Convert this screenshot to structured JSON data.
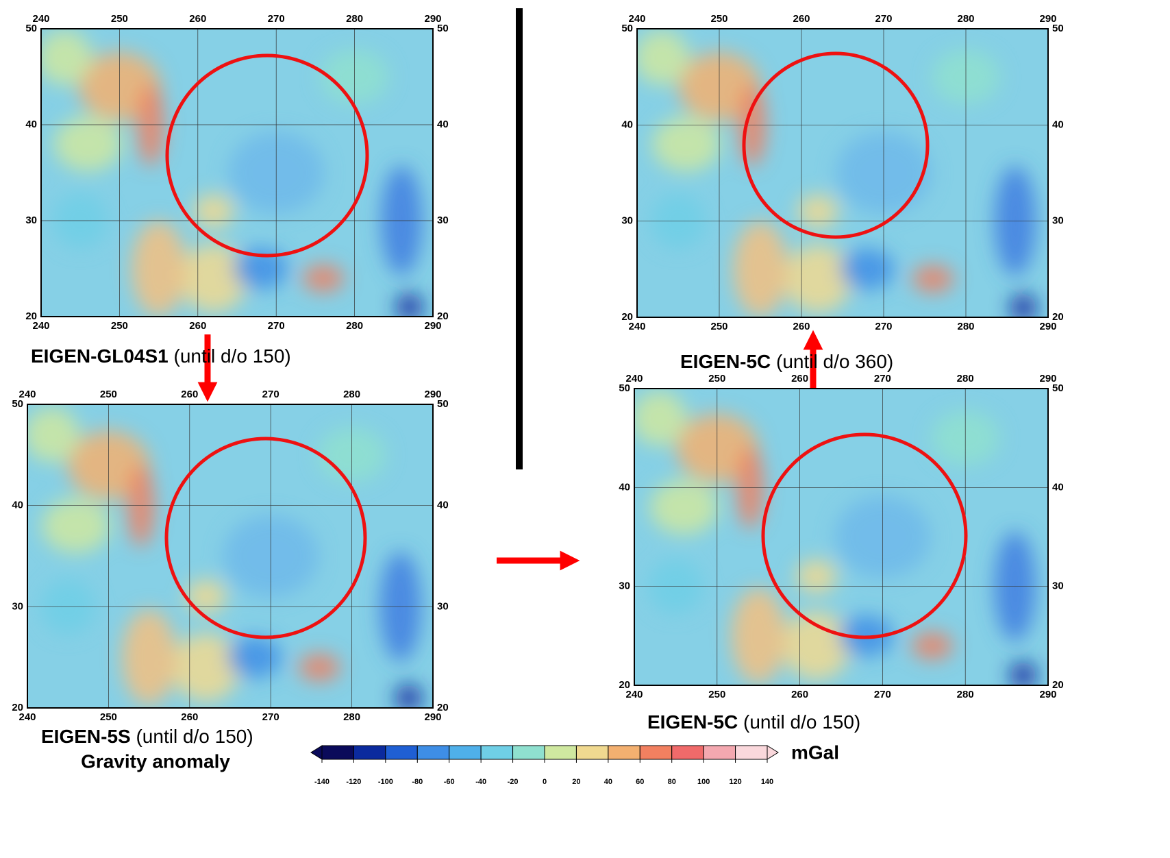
{
  "panels": [
    {
      "name": "EIGEN-GL04S1",
      "note": "(until d/o 150)",
      "xticks": [
        240,
        250,
        260,
        270,
        280,
        290
      ],
      "yticks": [
        20,
        30,
        40,
        50
      ]
    },
    {
      "name": "EIGEN-5S",
      "note": "(until d/o 150)",
      "xticks": [
        240,
        250,
        260,
        270,
        280,
        290
      ],
      "yticks": [
        20,
        30,
        40,
        50
      ]
    },
    {
      "name": "EIGEN-5C",
      "note": "(until d/o 360)",
      "xticks": [
        240,
        250,
        260,
        270,
        280,
        290
      ],
      "yticks": [
        20,
        30,
        40,
        50
      ]
    },
    {
      "name": "EIGEN-5C",
      "note": "(until d/o 150)",
      "xticks": [
        240,
        250,
        260,
        270,
        280,
        290
      ],
      "yticks": [
        20,
        30,
        40,
        50
      ]
    }
  ],
  "colorbar": {
    "title": "Gravity anomaly",
    "unit": "mGal",
    "ticks": [
      -140,
      -120,
      -100,
      -80,
      -60,
      -40,
      -20,
      0,
      20,
      40,
      60,
      80,
      100,
      120,
      140
    ],
    "colors": [
      "#0a0a5a",
      "#0b2a9e",
      "#1f5fd4",
      "#3e8ee6",
      "#4fb0ea",
      "#6fcfe6",
      "#8fe0cf",
      "#cfe8a0",
      "#f0d990",
      "#f3b070",
      "#f28060",
      "#f06a6a",
      "#f4a8b0",
      "#fad8dc"
    ]
  }
}
